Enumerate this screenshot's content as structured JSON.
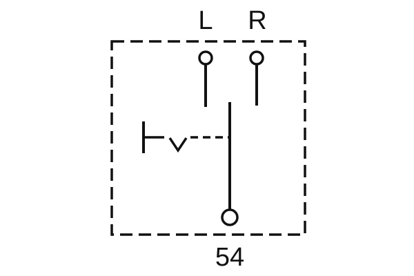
{
  "diagram": {
    "type": "switch-schematic",
    "terminals": {
      "left": "L",
      "right": "R",
      "bottom": "54"
    }
  }
}
